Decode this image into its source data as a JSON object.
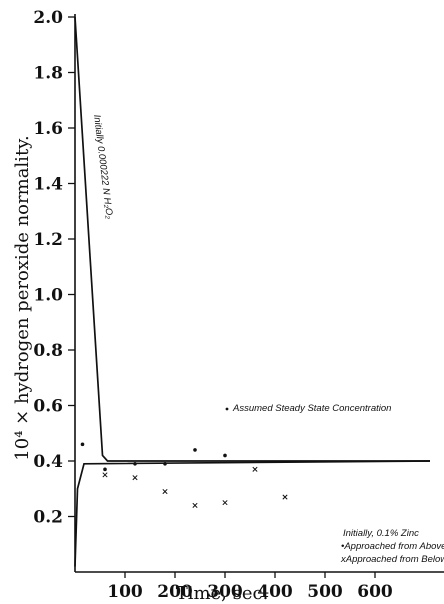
{
  "chart_data": {
    "type": "scatter",
    "xlabel": "Time, sec.",
    "ylabel": "10⁴ × hydrogen peroxide normality.",
    "xlim": [
      0,
      710
    ],
    "ylim": [
      0,
      2.0
    ],
    "x_ticks": [
      100,
      200,
      300,
      400,
      500,
      600
    ],
    "y_ticks": [
      0.2,
      0.4,
      0.6,
      0.8,
      1.0,
      1.2,
      1.4,
      1.6,
      1.8,
      2.0
    ],
    "y_tick_labels": [
      "0.2",
      "0.4",
      "0.6",
      "0.8",
      "1.0",
      "1.2",
      "1.4",
      "1.6",
      "1.8",
      "2.0"
    ],
    "series": [
      {
        "name": "Approached from Above",
        "marker": "dot",
        "x": [
          15,
          60,
          120,
          180,
          240,
          300
        ],
        "y": [
          0.46,
          0.37,
          0.39,
          0.39,
          0.44,
          0.42
        ]
      },
      {
        "name": "Approached from Below",
        "marker": "x",
        "x": [
          60,
          120,
          180,
          240,
          300,
          360,
          420
        ],
        "y": [
          0.35,
          0.34,
          0.29,
          0.24,
          0.25,
          0.37,
          0.27
        ]
      }
    ],
    "curves": [
      {
        "name": "from_above",
        "x": [
          0,
          55,
          65,
          710
        ],
        "y": [
          2.0,
          0.42,
          0.4,
          0.4
        ]
      },
      {
        "name": "from_below",
        "x": [
          0,
          5,
          18,
          710
        ],
        "y": [
          0.02,
          0.3,
          0.39,
          0.4
        ]
      }
    ],
    "annotations": {
      "initially_peroxide": "Initially 0.000222 N H₂O₂",
      "steady_state": "Assumed Steady State Concentration",
      "initially_zinc": "Initially, 0.1% Zinc",
      "legend_above": "•Approached from Above",
      "legend_below": "xApproached from Below"
    }
  }
}
